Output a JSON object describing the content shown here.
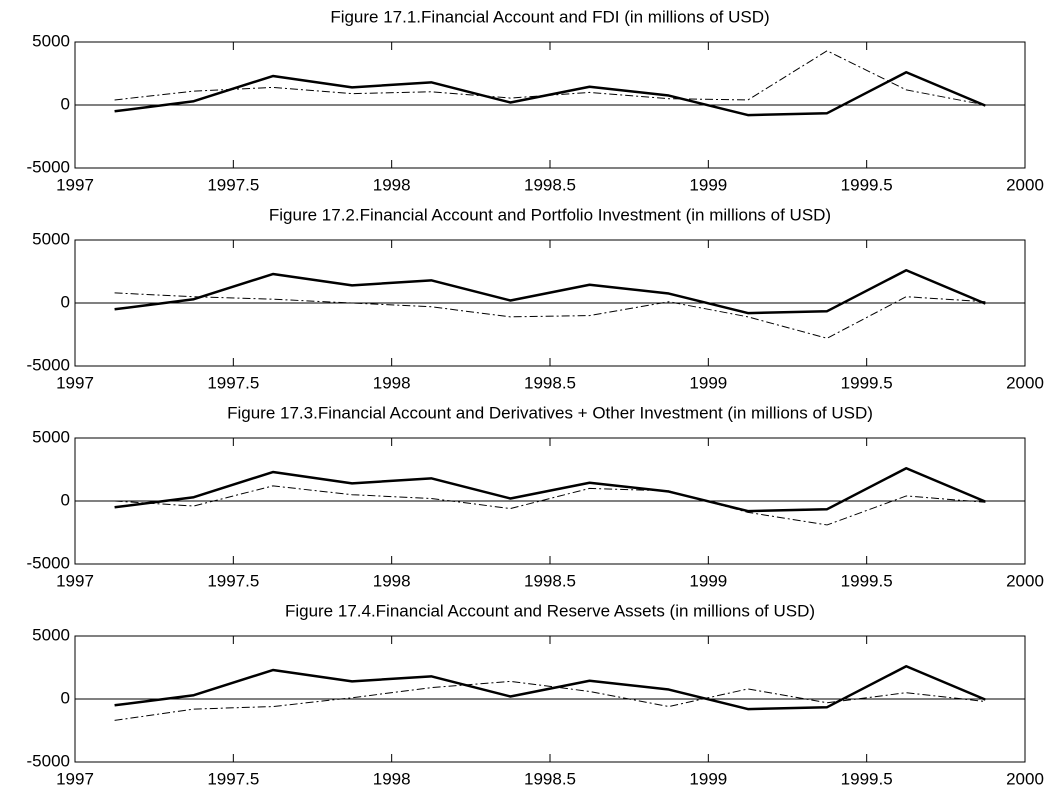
{
  "chart_data": [
    {
      "type": "line",
      "title": "Figure 17.1.Financial Account and FDI (in millions of USD)",
      "x": [
        1997.125,
        1997.375,
        1997.625,
        1997.875,
        1998.125,
        1998.375,
        1998.625,
        1998.875,
        1999.125,
        1999.375,
        1999.625,
        1999.875
      ],
      "series": [
        {
          "color": "#000000",
          "line_style": "solid",
          "line_width": 2.5,
          "values": [
            -500,
            300,
            2300,
            1400,
            1800,
            200,
            1450,
            750,
            -800,
            -650,
            2600,
            -50
          ]
        },
        {
          "color": "#000000",
          "line_style": "dashdot",
          "line_width": 1,
          "values": [
            400,
            1100,
            1400,
            900,
            1050,
            550,
            1000,
            500,
            400,
            4300,
            1200,
            0
          ]
        }
      ],
      "xlim": [
        1997,
        2000
      ],
      "ylim": [
        -5000,
        5000
      ],
      "xticks": [
        1997,
        1997.5,
        1998,
        1998.5,
        1999,
        1999.5,
        2000
      ],
      "yticks": [
        -5000,
        0,
        5000
      ]
    },
    {
      "type": "line",
      "title": "Figure 17.2.Financial Account and Portfolio Investment (in millions of USD)",
      "x": [
        1997.125,
        1997.375,
        1997.625,
        1997.875,
        1998.125,
        1998.375,
        1998.625,
        1998.875,
        1999.125,
        1999.375,
        1999.625,
        1999.875
      ],
      "series": [
        {
          "color": "#000000",
          "line_style": "solid",
          "line_width": 2.5,
          "values": [
            -500,
            300,
            2300,
            1400,
            1800,
            200,
            1450,
            750,
            -800,
            -650,
            2600,
            -50
          ]
        },
        {
          "color": "#000000",
          "line_style": "dashdot",
          "line_width": 1,
          "values": [
            800,
            500,
            300,
            0,
            -300,
            -1100,
            -1000,
            100,
            -1100,
            -2800,
            500,
            100
          ]
        }
      ],
      "xlim": [
        1997,
        2000
      ],
      "ylim": [
        -5000,
        5000
      ],
      "xticks": [
        1997,
        1997.5,
        1998,
        1998.5,
        1999,
        1999.5,
        2000
      ],
      "yticks": [
        -5000,
        0,
        5000
      ]
    },
    {
      "type": "line",
      "title": "Figure 17.3.Financial Account and Derivatives + Other Investment (in millions of USD)",
      "x": [
        1997.125,
        1997.375,
        1997.625,
        1997.875,
        1998.125,
        1998.375,
        1998.625,
        1998.875,
        1999.125,
        1999.375,
        1999.625,
        1999.875
      ],
      "series": [
        {
          "color": "#000000",
          "line_style": "solid",
          "line_width": 2.5,
          "values": [
            -500,
            300,
            2300,
            1400,
            1800,
            200,
            1450,
            750,
            -800,
            -650,
            2600,
            -50
          ]
        },
        {
          "color": "#000000",
          "line_style": "dashdot",
          "line_width": 1,
          "values": [
            0,
            -400,
            1200,
            500,
            200,
            -600,
            1000,
            800,
            -900,
            -1900,
            400,
            -100
          ]
        }
      ],
      "xlim": [
        1997,
        2000
      ],
      "ylim": [
        -5000,
        5000
      ],
      "xticks": [
        1997,
        1997.5,
        1998,
        1998.5,
        1999,
        1999.5,
        2000
      ],
      "yticks": [
        -5000,
        0,
        5000
      ]
    },
    {
      "type": "line",
      "title": "Figure 17.4.Financial Account and Reserve Assets (in millions of USD)",
      "x": [
        1997.125,
        1997.375,
        1997.625,
        1997.875,
        1998.125,
        1998.375,
        1998.625,
        1998.875,
        1999.125,
        1999.375,
        1999.625,
        1999.875
      ],
      "series": [
        {
          "color": "#000000",
          "line_style": "solid",
          "line_width": 2.5,
          "values": [
            -500,
            300,
            2300,
            1400,
            1800,
            200,
            1450,
            750,
            -800,
            -650,
            2600,
            -50
          ]
        },
        {
          "color": "#000000",
          "line_style": "dashdot",
          "line_width": 1,
          "values": [
            -1700,
            -800,
            -600,
            100,
            900,
            1400,
            600,
            -600,
            800,
            -300,
            500,
            -200
          ]
        }
      ],
      "xlim": [
        1997,
        2000
      ],
      "ylim": [
        -5000,
        5000
      ],
      "xticks": [
        1997,
        1997.5,
        1998,
        1998.5,
        1999,
        1999.5,
        2000
      ],
      "yticks": [
        -5000,
        0,
        5000
      ]
    }
  ]
}
